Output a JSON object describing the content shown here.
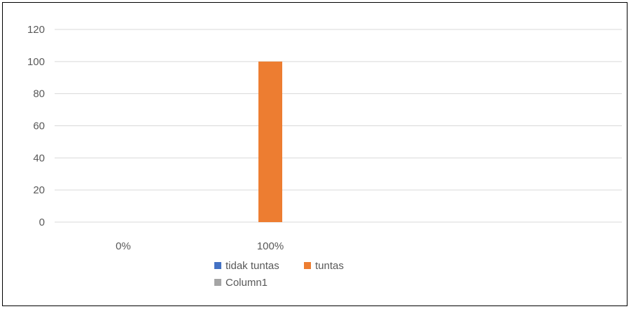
{
  "chart_data": {
    "type": "bar",
    "categories": [
      "0%",
      "100%"
    ],
    "series": [
      {
        "name": "tidak tuntas",
        "color": "#4472C4",
        "values": [
          0,
          0
        ]
      },
      {
        "name": "tuntas",
        "color": "#ED7D31",
        "values": [
          0,
          100
        ]
      },
      {
        "name": "Column1",
        "color": "#A5A5A5",
        "values": [
          0,
          0
        ]
      }
    ],
    "ylim": [
      0,
      120
    ],
    "yticks": [
      0,
      20,
      40,
      60,
      80,
      100,
      120
    ],
    "grid": true,
    "legend": "bottom",
    "gridline_color": "#D9D9D9"
  }
}
